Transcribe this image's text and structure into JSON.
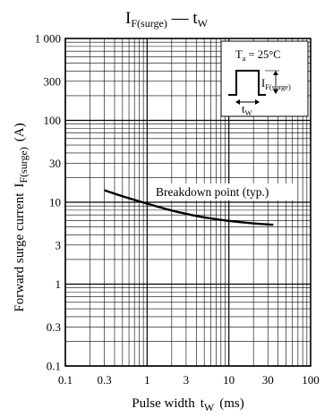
{
  "chart_data": {
    "type": "line",
    "title": {
      "symbol": "I",
      "symbol_sub": "F(surge)",
      "dash": " — ",
      "x_symbol": "t",
      "x_symbol_sub": "W"
    },
    "xaxis": {
      "scale": "log",
      "range": [
        0.1,
        100
      ],
      "ticks": [
        0.1,
        0.3,
        1,
        3,
        10,
        30,
        100
      ],
      "tick_labels": [
        "0.1",
        "0.3",
        "1",
        "3",
        "10",
        "30",
        "100"
      ],
      "label": "Pulse width",
      "label_symbol": "t",
      "label_symbol_sub": "W",
      "label_unit": "(ms)"
    },
    "yaxis": {
      "scale": "log",
      "range": [
        0.1,
        1000
      ],
      "ticks": [
        0.1,
        0.3,
        1,
        3,
        10,
        30,
        100,
        300,
        1000
      ],
      "tick_labels": [
        "0.1",
        "0.3",
        "1",
        "3",
        "10",
        "30",
        "100",
        "300",
        "1 000"
      ],
      "label": "Forward surge current",
      "label_symbol": "I",
      "label_symbol_sub": "F(surge)",
      "label_unit": "(A)"
    },
    "grid": true,
    "series": [
      {
        "x": [
          0.3,
          0.5,
          1,
          2,
          3,
          5,
          10,
          20,
          35
        ],
        "y": [
          14,
          11.8,
          9.6,
          7.9,
          7.2,
          6.5,
          5.9,
          5.5,
          5.3
        ],
        "color": "#000000"
      }
    ],
    "annotation": "Breakdown point (typ.)",
    "inset": {
      "condition": "T",
      "condition_sub": "a",
      "condition_value": " = 25°C",
      "amplitude_symbol": "I",
      "amplitude_sub": "F(surge)",
      "width_symbol": "t",
      "width_sub": "W"
    }
  }
}
